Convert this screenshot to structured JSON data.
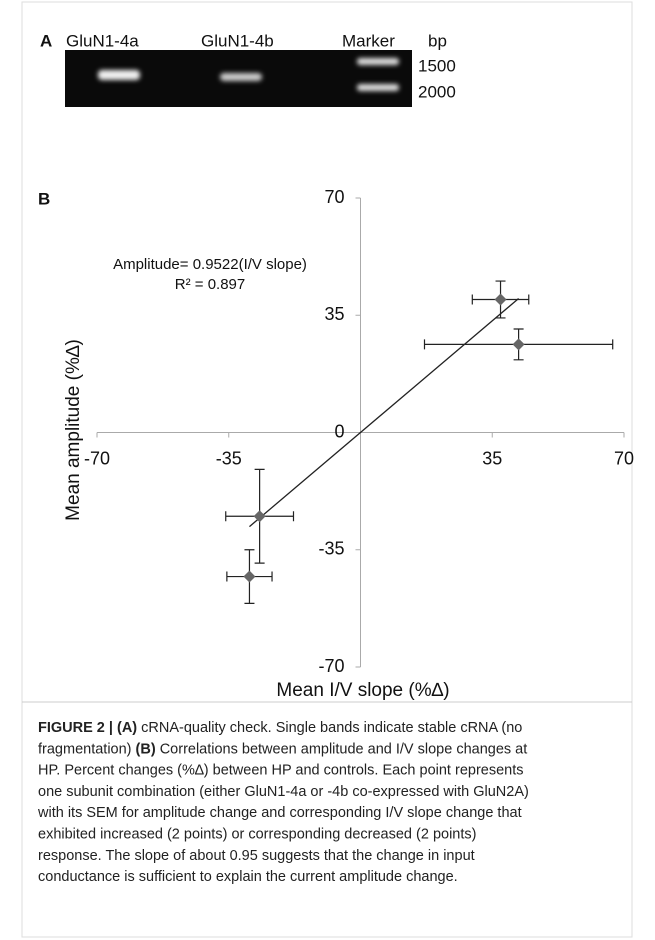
{
  "panel_a": {
    "label": "A",
    "lanes": [
      "GluN1-4a",
      "GluN1-4b",
      "Marker"
    ],
    "unit": "bp",
    "ladder": [
      "1500",
      "2000"
    ]
  },
  "panel_b_label": "B",
  "chart_data": {
    "type": "scatter",
    "x_label": "Mean I/V slope (%∆)",
    "y_label": "Mean  amplitude (%∆)",
    "x": [
      37.2,
      42,
      -26.8,
      -29.5
    ],
    "values": [
      39.7,
      26.3,
      -25,
      -43
    ],
    "xerr": [
      7.5,
      25,
      9,
      6
    ],
    "yerr": [
      5.5,
      4.6,
      14,
      8
    ],
    "color": "#666666",
    "xlim": [
      -70,
      70
    ],
    "ylim": [
      -70,
      70
    ],
    "xticks": [
      -70,
      -35,
      35,
      70
    ],
    "yticks": [
      -70,
      -35,
      0,
      35,
      70
    ],
    "trendline": {
      "label": "Amplitude= 0.9522(I/V slope)",
      "r2_label": "R² = 0.897",
      "slope": 0.9522
    }
  },
  "caption": [
    [
      {
        "text": "FIGURE 2 | (A)",
        "bold": true
      },
      {
        "text": " cRNA-quality check. Single bands indicate stable cRNA (no",
        "bold": false
      }
    ],
    [
      {
        "text": "fragmentation) ",
        "bold": false
      },
      {
        "text": "(B)",
        "bold": true
      },
      {
        "text": " Correlations between amplitude and I/V slope changes at",
        "bold": false
      }
    ],
    [
      {
        "text": "HP. Percent changes (%∆) between HP and controls. Each point represents",
        "bold": false
      }
    ],
    [
      {
        "text": "one subunit combination (either GluN1-4a or -4b co-expressed with GluN2A)",
        "bold": false
      }
    ],
    [
      {
        "text": "with its SEM for amplitude change and corresponding I/V slope change that",
        "bold": false
      }
    ],
    [
      {
        "text": "exhibited increased (2 points) or corresponding decreased (2 points)",
        "bold": false
      }
    ],
    [
      {
        "text": "response. The slope of about 0.95 suggests that the change in input",
        "bold": false
      }
    ],
    [
      {
        "text": "conductance is sufficient to explain the current amplitude change.",
        "bold": false
      }
    ]
  ]
}
